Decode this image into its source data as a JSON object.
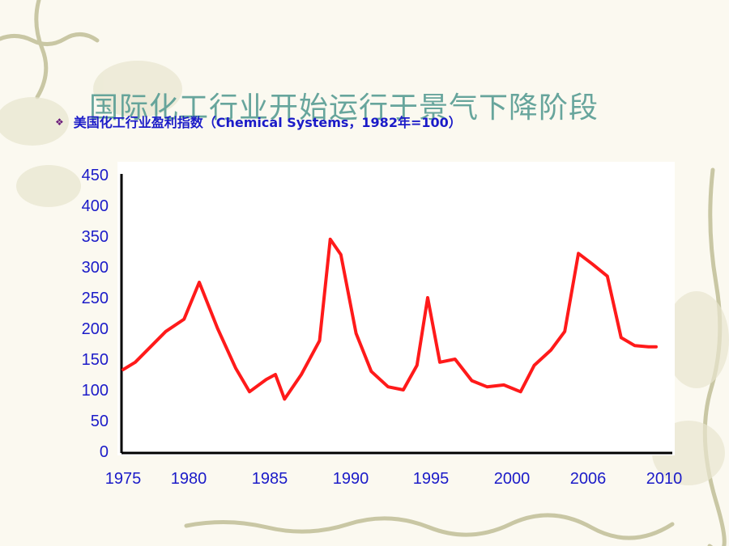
{
  "slide": {
    "title": "国际化工行业开始运行于景气下降阶段",
    "bullet_text": "美国化工行业盈利指数（Chemical Systems，1982年=100）"
  },
  "colors": {
    "series": "#ff1a1a",
    "axis_labels": "#1b1bc8",
    "title": "#5b9e95",
    "plot_bg": "#ffffff"
  },
  "chart_data": {
    "type": "line",
    "title": "",
    "xlabel": "",
    "ylabel": "",
    "ylim": [
      0,
      450
    ],
    "yticks": [
      0,
      50,
      100,
      150,
      200,
      250,
      300,
      350,
      400,
      450
    ],
    "xticks": [
      "1975",
      "1980",
      "1985",
      "1990",
      "1995",
      "2000",
      "2006",
      "2010"
    ],
    "grid": false,
    "legend": "none",
    "series": [
      {
        "x": [
          1975.0,
          1975.8,
          1976.8,
          1977.8,
          1979.0,
          1980.0,
          1981.2,
          1982.4,
          1983.3,
          1984.4,
          1985.0,
          1985.6,
          1986.7,
          1987.9,
          1988.6,
          1989.3,
          1990.3,
          1991.3,
          1992.4,
          1993.4,
          1994.3,
          1995.0,
          1995.8,
          1996.8,
          1997.9,
          1998.9,
          2000.0,
          2001.1,
          2002.0,
          2003.1,
          2004.0,
          2004.9,
          2005.8,
          2006.8,
          2007.7,
          2008.6,
          2009.5,
          2010.0
        ],
        "values": [
          133,
          145,
          170,
          195,
          215,
          275,
          200,
          135,
          97,
          117,
          125,
          85,
          125,
          180,
          345,
          320,
          192,
          130,
          105,
          100,
          140,
          250,
          145,
          150,
          115,
          105,
          108,
          97,
          140,
          165,
          195,
          322,
          305,
          285,
          185,
          172,
          170,
          170
        ]
      }
    ]
  }
}
